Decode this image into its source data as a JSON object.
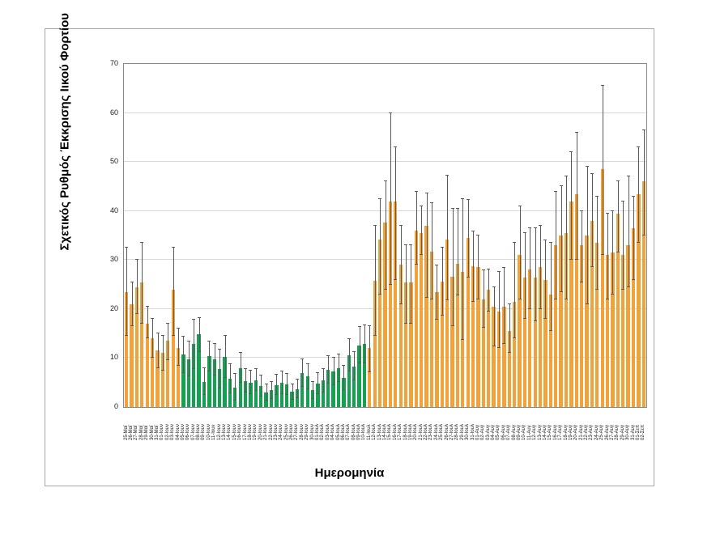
{
  "chart_data": {
    "type": "bar",
    "title": "",
    "xlabel": "Ημερομηνία",
    "ylabel": "Σχετικός Ρυθμός Έκκρισης Ιικού Φορτίου",
    "ylim": [
      0,
      70
    ],
    "y_ticks": [
      0,
      10,
      20,
      30,
      40,
      50,
      60,
      70
    ],
    "grid": "horizontal",
    "legend": "none",
    "error_bars": true,
    "error_bar_color": "#595959",
    "bar_color_default": "#f2a23b",
    "bar_color_highlight": "#14a251",
    "highlight_start_index": 11,
    "highlight_end_index": 46,
    "categories": [
      "25-Μαϊ",
      "26-Μαϊ",
      "27-Μαϊ",
      "28-Μαϊ",
      "29-Μαϊ",
      "30-Μαϊ",
      "31-Μαϊ",
      "01-Ιουν",
      "02-Ιουν",
      "03-Ιουν",
      "04-Ιουν",
      "05-Ιουν",
      "06-Ιουν",
      "07-Ιουν",
      "08-Ιουν",
      "09-Ιουν",
      "10-Ιουν",
      "11-Ιουν",
      "12-Ιουν",
      "13-Ιουν",
      "14-Ιουν",
      "15-Ιουν",
      "16-Ιουν",
      "17-Ιουν",
      "18-Ιουν",
      "19-Ιουν",
      "20-Ιουν",
      "21-Ιουν",
      "22-Ιουν",
      "23-Ιουν",
      "24-Ιουν",
      "25-Ιουν",
      "26-Ιουν",
      "27-Ιουν",
      "28-Ιουν",
      "29-Ιουν",
      "30-Ιουν",
      "01-Ιουλ",
      "02-Ιουλ",
      "03-Ιουλ",
      "04-Ιουλ",
      "05-Ιουλ",
      "06-Ιουλ",
      "07-Ιουλ",
      "08-Ιουλ",
      "09-Ιουλ",
      "10-Ιουλ",
      "11-Ιουλ",
      "12-Ιουλ",
      "13-Ιουλ",
      "14-Ιουλ",
      "15-Ιουλ",
      "16-Ιουλ",
      "17-Ιουλ",
      "18-Ιουλ",
      "19-Ιουλ",
      "20-Ιουλ",
      "21-Ιουλ",
      "22-Ιουλ",
      "23-Ιουλ",
      "24-Ιουλ",
      "25-Ιουλ",
      "26-Ιουλ",
      "27-Ιουλ",
      "28-Ιουλ",
      "29-Ιουλ",
      "30-Ιουλ",
      "31-Ιουλ",
      "01-Αυγ",
      "02-Αυγ",
      "03-Αυγ",
      "04-Αυγ",
      "05-Αυγ",
      "06-Αυγ",
      "07-Αυγ",
      "08-Αυγ",
      "09-Αυγ",
      "10-Αυγ",
      "11-Αυγ",
      "12-Αυγ",
      "13-Αυγ",
      "14-Αυγ",
      "15-Αυγ",
      "16-Αυγ",
      "17-Αυγ",
      "18-Αυγ",
      "19-Αυγ",
      "20-Αυγ",
      "21-Αυγ",
      "22-Αυγ",
      "23-Αυγ",
      "24-Αυγ",
      "25-Αυγ",
      "26-Αυγ",
      "27-Αυγ",
      "28-Αυγ",
      "29-Αυγ",
      "30-Αυγ",
      "31-Αυγ",
      "01-Σεπ",
      "02-Σεπ"
    ],
    "values": [
      23.5,
      21,
      24.5,
      25.5,
      17,
      14,
      11.5,
      11,
      13.5,
      24,
      12,
      10.7,
      9.8,
      12.8,
      14.8,
      5.2,
      10.4,
      9.7,
      7.8,
      10.2,
      5.8,
      4,
      8,
      5.3,
      5,
      5.5,
      4.3,
      3,
      3.4,
      4.5,
      5,
      4.6,
      3.1,
      3.7,
      7,
      6.2,
      3.4,
      4.8,
      5.4,
      7.6,
      7.2,
      7.9,
      5.9,
      10.5,
      8.3,
      12.6,
      12.8,
      12.1,
      25.7,
      34.2,
      37.6,
      42,
      42,
      29,
      25.5,
      25.5,
      36,
      35.5,
      37,
      31.7,
      23.4,
      25.6,
      34.2,
      26.6,
      29.2,
      27.5,
      34.5,
      28.7,
      28.5,
      22,
      23.9,
      20.4,
      19.5,
      20.5,
      15.5,
      21.5,
      31,
      26.5,
      28,
      26.5,
      28.5,
      26,
      23,
      33,
      35,
      35.5,
      42,
      43.5,
      33,
      35,
      38,
      33.5,
      48.5,
      31,
      31.5,
      39.5,
      31,
      33,
      36.5,
      43.5,
      46
    ],
    "error_low": [
      14.5,
      16.5,
      19,
      17,
      14,
      10,
      8,
      7.5,
      9.5,
      14.5,
      8.5,
      7,
      6.3,
      7.8,
      11.2,
      2.5,
      7.3,
      6.4,
      3.8,
      5.9,
      2.8,
      1.3,
      5,
      2.9,
      2.6,
      3.3,
      2.2,
      1.4,
      1.7,
      2.4,
      2.7,
      2.4,
      1.5,
      1.8,
      4.2,
      3.7,
      1.6,
      2.6,
      3,
      4.8,
      4.4,
      5.1,
      3.4,
      7.2,
      5.4,
      9,
      9,
      7.1,
      14.6,
      22.9,
      24,
      25,
      26,
      21,
      17,
      17,
      29,
      31,
      22.3,
      22,
      17.9,
      18.7,
      21.8,
      16.5,
      22.8,
      13.7,
      26.5,
      21.5,
      22,
      16.2,
      19.5,
      12.4,
      12,
      12.8,
      11,
      14,
      22,
      18,
      20,
      17.5,
      20,
      18,
      15.5,
      22,
      23.5,
      22,
      30,
      30,
      25.5,
      21,
      28.5,
      24,
      31,
      22,
      23,
      31.5,
      24,
      24.5,
      26,
      33.5,
      35
    ],
    "error_high": [
      32.5,
      25.5,
      30,
      33.5,
      20.5,
      18,
      15,
      14.5,
      17,
      32.5,
      16,
      14.3,
      13.3,
      17.9,
      18.2,
      8,
      13.4,
      12.9,
      11.8,
      14.5,
      8.7,
      6.8,
      11,
      7.7,
      7.4,
      7.7,
      6.4,
      4.6,
      5.1,
      6.6,
      7.3,
      6.8,
      4.7,
      5.6,
      9.8,
      8.7,
      5.2,
      7,
      7.8,
      10.4,
      10,
      10.7,
      8.4,
      13.8,
      11.2,
      16.3,
      16.7,
      16.5,
      37,
      42.5,
      46,
      60,
      53,
      37,
      33,
      33,
      44,
      41,
      43.6,
      41.6,
      28.9,
      32.5,
      47.3,
      40.5,
      40.5,
      42.5,
      42.3,
      35.8,
      35,
      27.9,
      28.1,
      24.5,
      27.5,
      28.4,
      21,
      33.5,
      41,
      35.5,
      36.5,
      36.5,
      37,
      34,
      33.5,
      44,
      45,
      47,
      52,
      56,
      40,
      49,
      47.5,
      43,
      65.5,
      39.5,
      40,
      46,
      42,
      47,
      43,
      53,
      56.5
    ]
  }
}
